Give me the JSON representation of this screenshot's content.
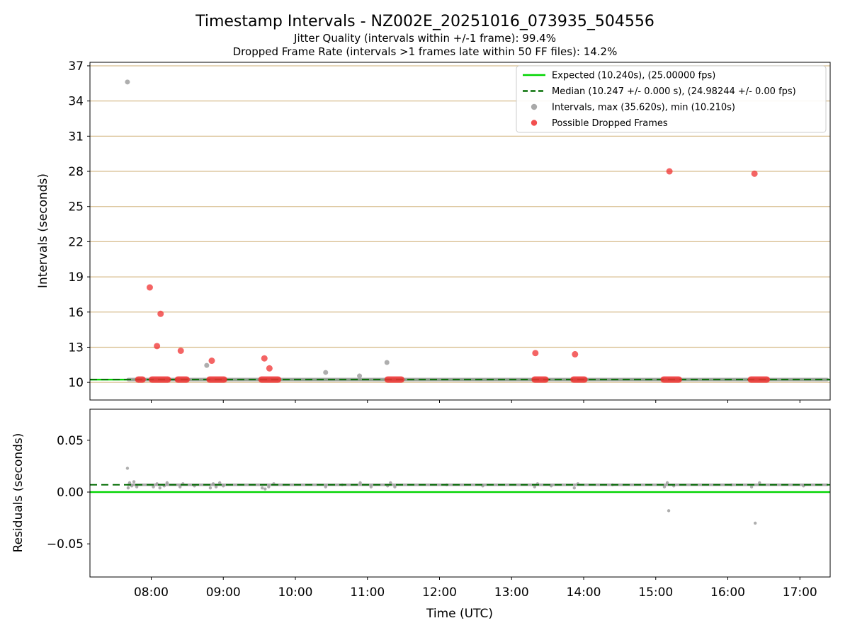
{
  "figure": {
    "title": "Timestamp Intervals - NZ002E_20251016_073935_504556",
    "subtitle_line1": "Jitter Quality (intervals within +/-1 frame): 99.4%",
    "subtitle_line2": "Dropped Frame Rate (intervals >1 frames late within 50 FF files): 14.2%",
    "xlabel": "Time (UTC)"
  },
  "colors": {
    "expected_line": "#00d400",
    "median_line": "#056e05",
    "intervals_marker": "#9a9a9a",
    "dropped_marker": "#f03030",
    "grid": "#d8be8f",
    "axis": "#000000",
    "background": "#ffffff",
    "legend_border": "#cccccc"
  },
  "chart_data": [
    {
      "name": "intervals",
      "type": "scatter",
      "title": "Timestamp Intervals - NZ002E_20251016_073935_504556",
      "ylabel": "Intervals (seconds)",
      "ylim": [
        8.5,
        37.3
      ],
      "yticks": [
        10,
        13,
        16,
        19,
        22,
        25,
        28,
        31,
        34,
        37
      ],
      "xlim": [
        7.15,
        17.42
      ],
      "xticks": [
        8,
        9,
        10,
        11,
        12,
        13,
        14,
        15,
        16,
        17
      ],
      "xtick_labels": [
        "08:00",
        "09:00",
        "10:00",
        "11:00",
        "12:00",
        "13:00",
        "14:00",
        "15:00",
        "16:00",
        "17:00"
      ],
      "grid": "y",
      "expected_value": 10.24,
      "median_value": 10.247,
      "stats": {
        "expected_interval_s": 10.24,
        "expected_fps": 25.0,
        "median_interval_s": 10.247,
        "median_fps": 24.98244,
        "max_interval_s": 35.62,
        "min_interval_s": 10.21,
        "jitter_quality_pct": 99.4,
        "dropped_frame_rate_pct": 14.2
      },
      "legend": {
        "position": "upper right",
        "entries": [
          {
            "marker": "line",
            "color_key": "expected_line",
            "label": "Expected (10.240s), (25.00000 fps)"
          },
          {
            "marker": "dashed",
            "color_key": "median_line",
            "label": "Median (10.247 +/- 0.000 s), (24.98244 +/- 0.00 fps)"
          },
          {
            "marker": "dot",
            "color_key": "intervals_marker",
            "label": "Intervals, max (35.620s), min (10.210s)"
          },
          {
            "marker": "dot",
            "color_key": "dropped_marker",
            "label": "Possible Dropped Frames"
          }
        ]
      },
      "series": [
        {
          "name": "Intervals",
          "color_key": "intervals_marker",
          "points": [
            [
              7.67,
              35.62
            ],
            [
              8.77,
              11.45
            ],
            [
              10.42,
              10.85
            ],
            [
              10.89,
              10.55
            ],
            [
              11.27,
              11.7
            ]
          ]
        },
        {
          "name": "Possible Dropped Frames",
          "color_key": "dropped_marker",
          "points": [
            [
              7.98,
              18.1
            ],
            [
              8.08,
              13.1
            ],
            [
              8.13,
              15.85
            ],
            [
              8.41,
              12.7
            ],
            [
              8.84,
              11.85
            ],
            [
              9.57,
              12.05
            ],
            [
              9.64,
              11.2
            ],
            [
              13.33,
              12.5
            ],
            [
              13.88,
              12.4
            ],
            [
              15.19,
              28.0
            ],
            [
              16.37,
              27.8
            ]
          ]
        }
      ],
      "band_segments": [
        {
          "series": 0,
          "start": 7.68,
          "end": 17.38,
          "value": 10.247
        },
        {
          "series": 1,
          "start": 7.82,
          "end": 7.88,
          "value": 10.247
        },
        {
          "series": 1,
          "start": 8.01,
          "end": 8.23,
          "value": 10.247
        },
        {
          "series": 1,
          "start": 8.37,
          "end": 8.49,
          "value": 10.247
        },
        {
          "series": 1,
          "start": 8.81,
          "end": 9.01,
          "value": 10.247
        },
        {
          "series": 1,
          "start": 9.53,
          "end": 9.76,
          "value": 10.247
        },
        {
          "series": 1,
          "start": 11.28,
          "end": 11.47,
          "value": 10.247
        },
        {
          "series": 1,
          "start": 13.32,
          "end": 13.47,
          "value": 10.247
        },
        {
          "series": 1,
          "start": 13.86,
          "end": 14.01,
          "value": 10.247
        },
        {
          "series": 1,
          "start": 15.11,
          "end": 15.32,
          "value": 10.247
        },
        {
          "series": 1,
          "start": 16.32,
          "end": 16.54,
          "value": 10.247
        }
      ]
    },
    {
      "name": "residuals",
      "type": "scatter",
      "ylabel": "Residuals (seconds)",
      "ylim": [
        -0.082,
        0.08
      ],
      "yticks": [
        -0.05,
        0.0,
        0.05
      ],
      "ytick_labels": [
        "−0.05",
        "0.00",
        "0.05"
      ],
      "xlim": [
        7.15,
        17.42
      ],
      "xticks": [
        8,
        9,
        10,
        11,
        12,
        13,
        14,
        15,
        16,
        17
      ],
      "xtick_labels": [
        "08:00",
        "09:00",
        "10:00",
        "11:00",
        "12:00",
        "13:00",
        "14:00",
        "15:00",
        "16:00",
        "17:00"
      ],
      "xlabel": "Time (UTC)",
      "grid": "off",
      "expected_value": 0.0,
      "median_value": 0.007,
      "series": [
        {
          "name": "Residuals",
          "color_key": "intervals_marker",
          "points": [
            [
              7.67,
              0.023
            ],
            [
              7.68,
              0.004
            ],
            [
              7.7,
              0.009
            ],
            [
              7.73,
              0.006
            ],
            [
              7.76,
              0.01
            ],
            [
              7.8,
              0.005
            ],
            [
              8.03,
              0.005
            ],
            [
              8.08,
              0.008
            ],
            [
              8.12,
              0.004
            ],
            [
              8.18,
              0.006
            ],
            [
              8.22,
              0.009
            ],
            [
              8.4,
              0.005
            ],
            [
              8.44,
              0.008
            ],
            [
              8.6,
              0.006
            ],
            [
              8.82,
              0.004
            ],
            [
              8.86,
              0.008
            ],
            [
              8.9,
              0.005
            ],
            [
              8.95,
              0.009
            ],
            [
              9.0,
              0.006
            ],
            [
              9.54,
              0.004
            ],
            [
              9.58,
              0.003
            ],
            [
              9.63,
              0.005
            ],
            [
              9.7,
              0.008
            ],
            [
              10.42,
              0.005
            ],
            [
              10.65,
              0.007
            ],
            [
              10.9,
              0.009
            ],
            [
              11.05,
              0.005
            ],
            [
              11.28,
              0.006
            ],
            [
              11.32,
              0.009
            ],
            [
              11.38,
              0.005
            ],
            [
              12.1,
              0.007
            ],
            [
              12.6,
              0.006
            ],
            [
              13.32,
              0.005
            ],
            [
              13.36,
              0.008
            ],
            [
              13.55,
              0.006
            ],
            [
              13.87,
              0.004
            ],
            [
              13.92,
              0.008
            ],
            [
              14.4,
              0.007
            ],
            [
              15.12,
              0.005
            ],
            [
              15.16,
              0.009
            ],
            [
              15.18,
              -0.018
            ],
            [
              15.25,
              0.006
            ],
            [
              16.05,
              0.007
            ],
            [
              16.33,
              0.005
            ],
            [
              16.38,
              -0.03
            ],
            [
              16.44,
              0.009
            ],
            [
              17.05,
              0.006
            ]
          ]
        }
      ],
      "band_segments": [
        {
          "series": 0,
          "start": 7.68,
          "end": 17.38,
          "value": 0.007
        }
      ]
    }
  ]
}
